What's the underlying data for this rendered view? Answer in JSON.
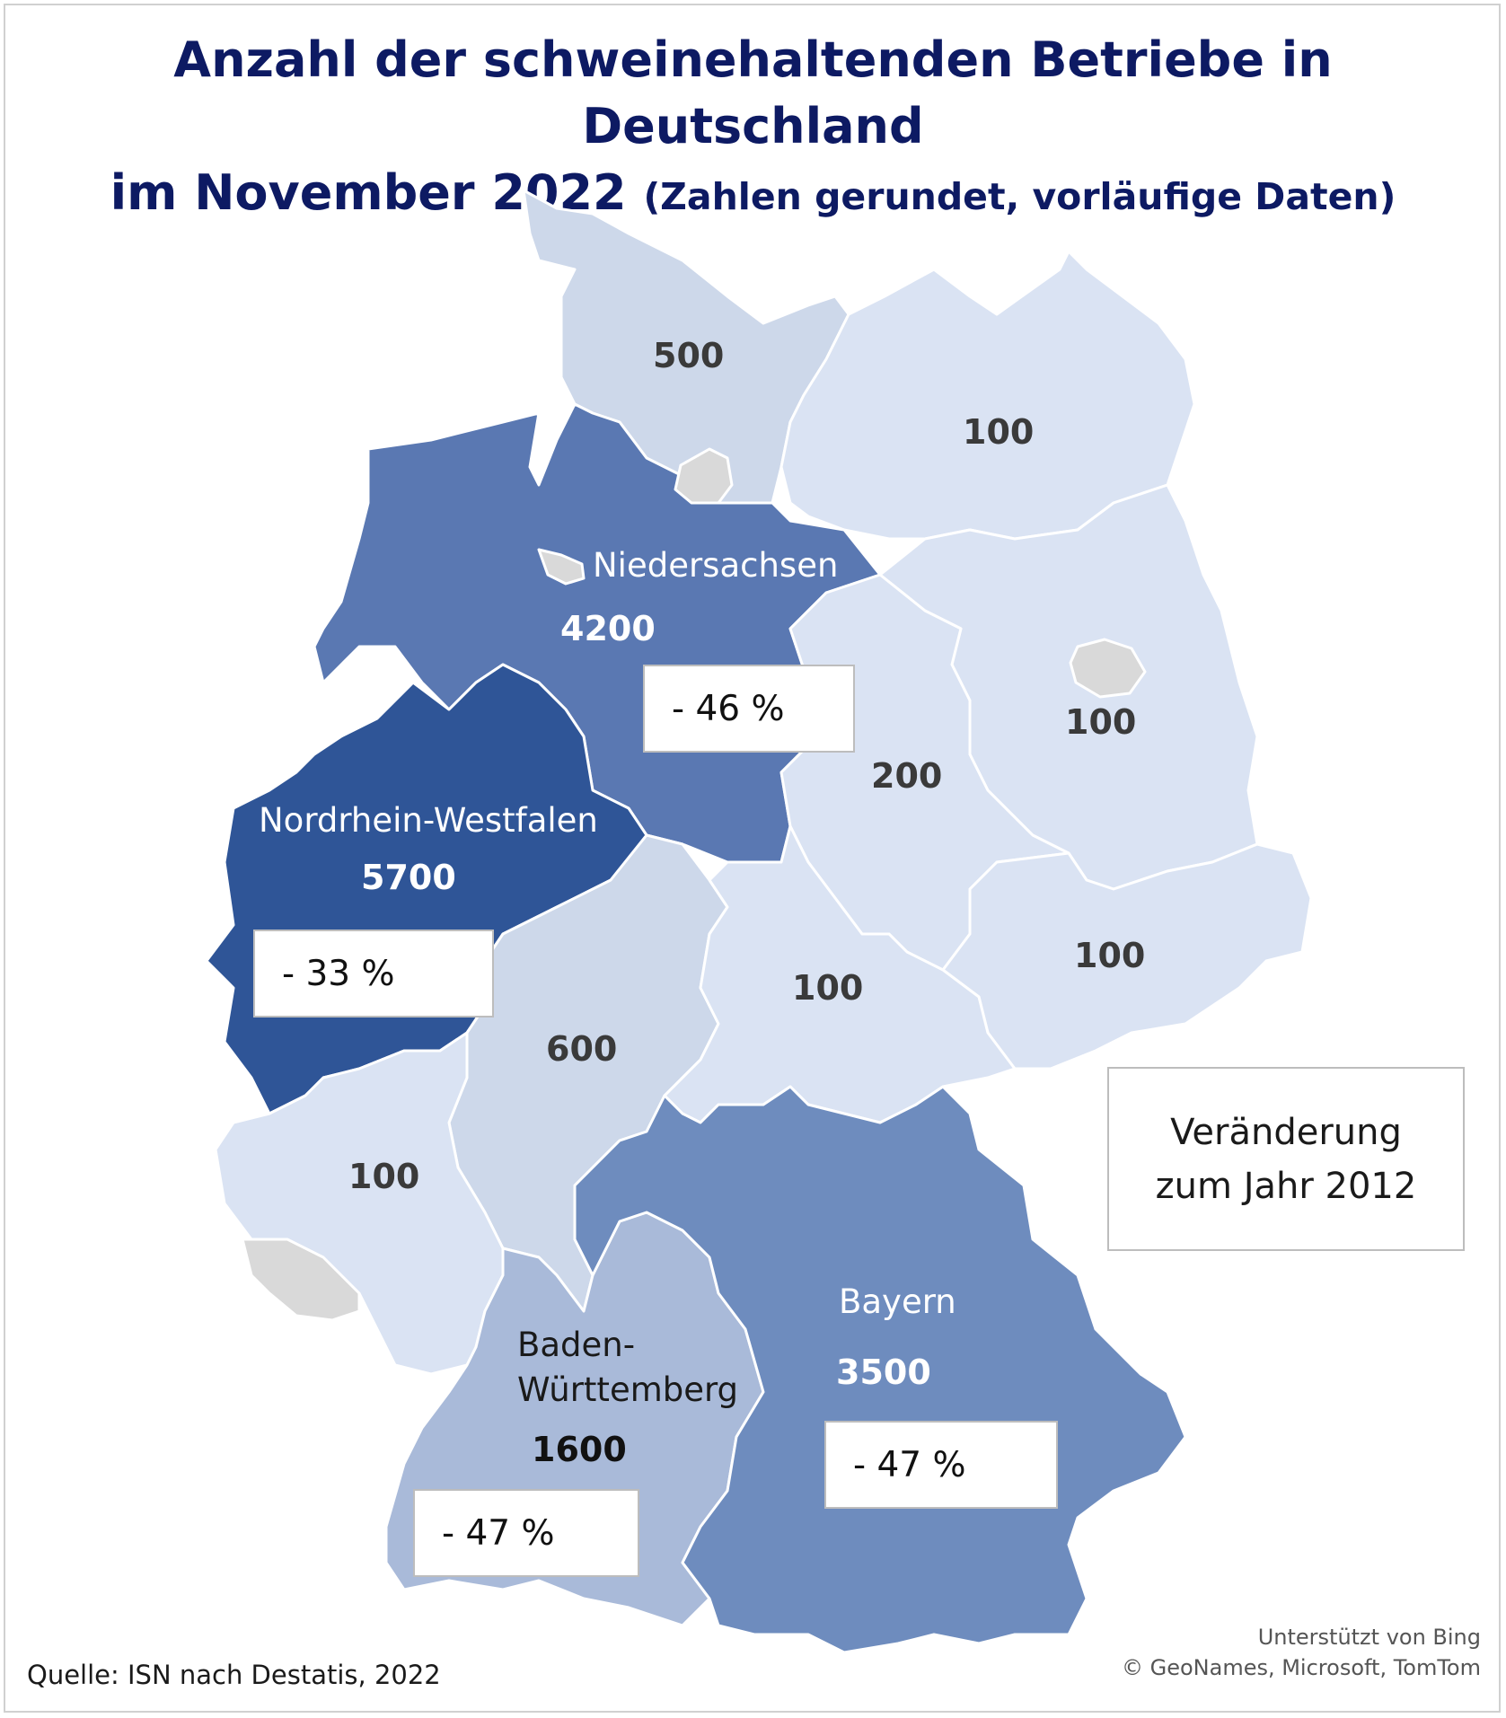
{
  "title": {
    "line1": "Anzahl der schweinehaltenden Betriebe in Deutschland",
    "line2_main": "im November 2022",
    "line2_sub": "(Zahlen gerundet, vorläufige Daten)"
  },
  "colors": {
    "nrw": "#2f5597",
    "niedersachsen": "#5a78b2",
    "bayern": "#6e8cbe",
    "baden_wuerttemberg": "#a9bad9",
    "schleswig_holstein": "#cdd8ea",
    "hessen": "#cdd8ea",
    "light_states": "#dae3f3",
    "city_states": "#d9d9d9",
    "title": "#0d1a63"
  },
  "states": {
    "schleswig_holstein": {
      "value": "500"
    },
    "mecklenburg_vorpommern": {
      "value": "100"
    },
    "niedersachsen": {
      "name": "Niedersachsen",
      "value": "4200",
      "change": "- 46 %"
    },
    "brandenburg": {
      "value": "100"
    },
    "sachsen_anhalt": {
      "value": "200"
    },
    "nordrhein_westfalen": {
      "name": "Nordrhein-Westfalen",
      "value": "5700",
      "change": "- 33 %"
    },
    "sachsen": {
      "value": "100"
    },
    "thueringen": {
      "value": "100"
    },
    "hessen": {
      "value": "600"
    },
    "rheinland_pfalz": {
      "value": "100"
    },
    "bayern": {
      "name": "Bayern",
      "value": "3500",
      "change": "- 47 %"
    },
    "baden_wuerttemberg": {
      "name_line1": "Baden-",
      "name_line2": "Württemberg",
      "value": "1600",
      "change": "- 47 %"
    }
  },
  "legend": {
    "line1": "Veränderung",
    "line2": "zum Jahr 2012"
  },
  "source": "Quelle: ISN nach Destatis, 2022",
  "credits": {
    "line1": "Unterstützt von Bing",
    "line2": "© GeoNames, Microsoft, TomTom"
  }
}
